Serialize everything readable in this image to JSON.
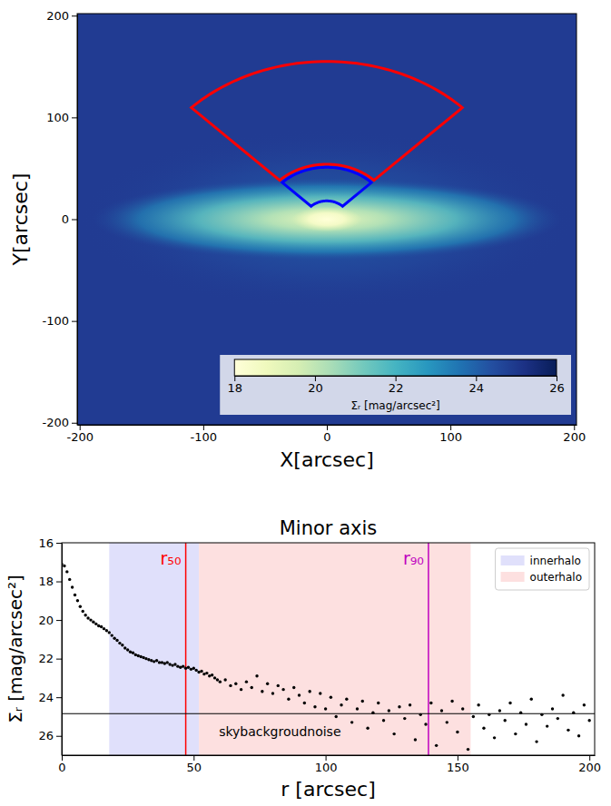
{
  "chart_data": [
    {
      "type": "image",
      "x_label": "X[arcsec]",
      "y_label": "Y[arcsec]",
      "xlim": [
        -202,
        202
      ],
      "ylim": [
        -202,
        202
      ],
      "xticks": [
        -200,
        -100,
        0,
        100,
        200
      ],
      "yticks": [
        -200,
        -100,
        0,
        100,
        200
      ],
      "colorbar": {
        "label": "Σᵣ [mag/arcsec²]",
        "range": [
          18,
          26
        ],
        "ticks": [
          18,
          20,
          22,
          24,
          26
        ]
      },
      "sectors": [
        {
          "color": "#ff0000",
          "r": [
            54,
            155
          ],
          "angle": [
            45,
            135
          ]
        },
        {
          "color": "#0000ff",
          "r": [
            18,
            51
          ],
          "angle": [
            45,
            135
          ]
        }
      ]
    },
    {
      "type": "scatter",
      "title": "Minor axis",
      "x_label": "r [arcsec]",
      "y_label": "Σᵣ [mag/arcsec²]",
      "xlim": [
        0,
        202
      ],
      "ylim": [
        27,
        16
      ],
      "xticks": [
        0,
        50,
        100,
        150,
        200
      ],
      "yticks": [
        16,
        18,
        20,
        22,
        24,
        26
      ],
      "color": "#000000",
      "marker": "circle",
      "legend": "upper right",
      "x": [
        0,
        1,
        2,
        3,
        4,
        5,
        6,
        7,
        8,
        9,
        10,
        11,
        12,
        13,
        14,
        15,
        16,
        17,
        18,
        19,
        20,
        21,
        22,
        23,
        24,
        25,
        26,
        27,
        28,
        29,
        30,
        31,
        32,
        33,
        34,
        35,
        36,
        37,
        38,
        39,
        40,
        41,
        42,
        43,
        44,
        45,
        46,
        47,
        48,
        49,
        50,
        51,
        52,
        53,
        54,
        55,
        56,
        57,
        58,
        59,
        60,
        62,
        64,
        66,
        68,
        70,
        72,
        74,
        76,
        78,
        80,
        82,
        84,
        86,
        88,
        90,
        92,
        94,
        96,
        98,
        100,
        102,
        104,
        106,
        108,
        110,
        112,
        114,
        116,
        118,
        120,
        122,
        124,
        126,
        128,
        130,
        132,
        134,
        136,
        138,
        140,
        142,
        144,
        146,
        148,
        150,
        152,
        154,
        156,
        158,
        160,
        162,
        164,
        166,
        168,
        170,
        172,
        174,
        176,
        178,
        180,
        182,
        184,
        186,
        188,
        190,
        192,
        194,
        196,
        198,
        200
      ],
      "values": [
        17.1,
        17.2,
        17.5,
        17.9,
        18.3,
        18.7,
        19.0,
        19.3,
        19.55,
        19.75,
        19.9,
        20.0,
        20.1,
        20.2,
        20.3,
        20.35,
        20.45,
        20.55,
        20.65,
        20.8,
        20.95,
        21.05,
        21.2,
        21.3,
        21.45,
        21.55,
        21.65,
        21.7,
        21.8,
        21.85,
        21.9,
        21.95,
        22.0,
        22.05,
        22.1,
        22.15,
        22.1,
        22.2,
        22.2,
        22.25,
        22.2,
        22.3,
        22.35,
        22.3,
        22.4,
        22.45,
        22.4,
        22.5,
        22.45,
        22.55,
        22.5,
        22.6,
        22.7,
        22.65,
        22.8,
        22.75,
        22.9,
        22.85,
        23.0,
        23.1,
        23.2,
        23.1,
        23.4,
        23.3,
        23.6,
        23.2,
        23.5,
        22.9,
        23.7,
        23.3,
        23.8,
        23.4,
        23.6,
        24.1,
        23.5,
        23.9,
        24.3,
        23.7,
        24.5,
        23.8,
        24.6,
        24.0,
        25.0,
        24.4,
        24.1,
        25.3,
        24.6,
        24.2,
        25.6,
        24.8,
        24.3,
        25.2,
        24.7,
        25.9,
        24.5,
        25.1,
        24.4,
        26.2,
        24.9,
        25.4,
        24.3,
        26.5,
        24.7,
        25.3,
        24.2,
        25.8,
        24.6,
        26.7,
        25.0,
        24.4,
        25.6,
        24.9,
        26.1,
        24.7,
        25.2,
        24.3,
        25.9,
        24.8,
        25.4,
        24.1,
        26.3,
        24.9,
        25.5,
        24.6,
        25.1,
        23.9,
        25.7,
        24.8,
        26.0,
        24.4,
        25.2
      ],
      "bands": [
        {
          "name": "innerhalo",
          "color": "#e0e0fb",
          "range": [
            18,
            52
          ]
        },
        {
          "name": "outerhalo",
          "color": "#fde0e0",
          "range": [
            52,
            155
          ]
        }
      ],
      "vlines": [
        {
          "label": "r₅₀",
          "value": 47,
          "color": "#ff0000"
        },
        {
          "label": "r₉₀",
          "value": 139,
          "color": "#bf00bf"
        }
      ],
      "hline": {
        "label": "skybackgroudnoise",
        "value": 24.85,
        "color": "#000000"
      }
    }
  ]
}
